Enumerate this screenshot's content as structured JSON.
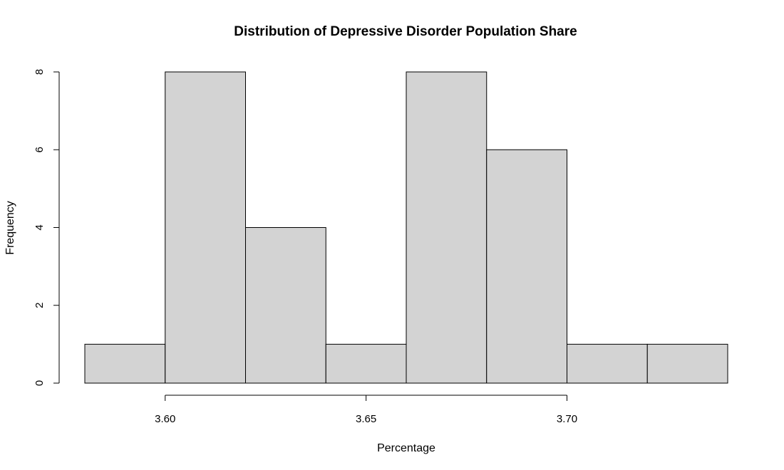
{
  "chart_data": {
    "type": "bar",
    "title": "Distribution of Depressive Disorder Population Share",
    "xlabel": "Percentage",
    "ylabel": "Frequency",
    "bins": [
      {
        "start": 3.58,
        "end": 3.6,
        "count": 1
      },
      {
        "start": 3.6,
        "end": 3.62,
        "count": 8
      },
      {
        "start": 3.62,
        "end": 3.64,
        "count": 4
      },
      {
        "start": 3.64,
        "end": 3.66,
        "count": 1
      },
      {
        "start": 3.66,
        "end": 3.68,
        "count": 8
      },
      {
        "start": 3.68,
        "end": 3.7,
        "count": 6
      },
      {
        "start": 3.7,
        "end": 3.72,
        "count": 1
      },
      {
        "start": 3.72,
        "end": 3.74,
        "count": 1
      }
    ],
    "x_ticks": [
      {
        "value": 3.6,
        "label": "3.60"
      },
      {
        "value": 3.65,
        "label": "3.65"
      },
      {
        "value": 3.7,
        "label": "3.70"
      }
    ],
    "y_ticks": [
      {
        "value": 0,
        "label": "0"
      },
      {
        "value": 2,
        "label": "2"
      },
      {
        "value": 4,
        "label": "4"
      },
      {
        "value": 6,
        "label": "6"
      },
      {
        "value": 8,
        "label": "8"
      }
    ],
    "xlim": [
      3.58,
      3.74
    ],
    "ylim": [
      0,
      8
    ],
    "grid": false,
    "bar_color": "#d3d3d3",
    "bar_edge_color": "#000000"
  }
}
